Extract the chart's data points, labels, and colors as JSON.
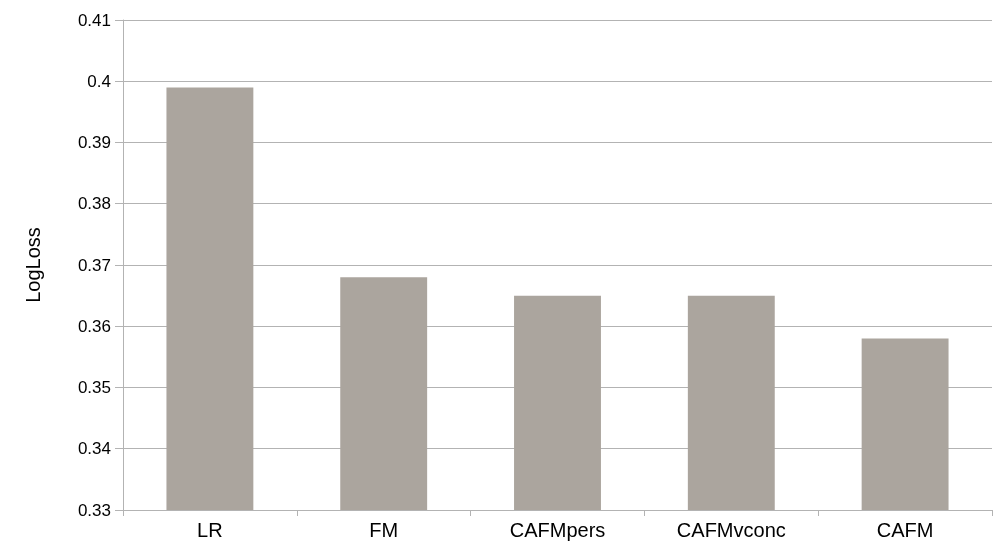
{
  "chart_data": {
    "type": "bar",
    "ylabel": "LogLoss",
    "categories": [
      "LR",
      "FM",
      "CAFMpers",
      "CAFMvconc",
      "CAFM"
    ],
    "values": [
      0.399,
      0.368,
      0.365,
      0.365,
      0.358
    ],
    "color": "#aba59e",
    "ylim": [
      0.33,
      0.41
    ],
    "yticks": [
      0.33,
      0.34,
      0.35,
      0.36,
      0.37,
      0.38,
      0.39,
      0.4,
      0.41
    ],
    "grid": "y"
  }
}
